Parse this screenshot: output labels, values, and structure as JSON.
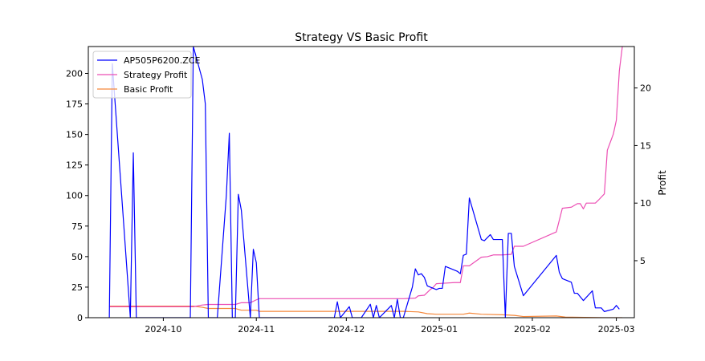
{
  "chart_data": {
    "type": "line",
    "title": "Strategy VS Basic Profit",
    "xlabel": "",
    "ylabel_left": "",
    "ylabel_right": "Profit",
    "x_ticks": [
      "2024-10",
      "2024-11",
      "2024-12",
      "2025-01",
      "2025-02",
      "2025-03"
    ],
    "y_left_ticks": [
      "0",
      "25",
      "50",
      "75",
      "100",
      "125",
      "150",
      "175",
      "200"
    ],
    "y_right_ticks": [
      "5",
      "10",
      "15",
      "20"
    ],
    "xlim": [
      "2024-09-06",
      "2025-03-07"
    ],
    "ylim_left": [
      0,
      222
    ],
    "ylim_right": [
      0.05,
      23.6
    ],
    "grid": false,
    "legend_position": "top-left",
    "series": [
      {
        "name": "AP505P6200.ZCE",
        "axis": "left",
        "color": "#0000ff",
        "points": [
          [
            "2024-09-13",
            0
          ],
          [
            "2024-09-14",
            208
          ],
          [
            "2024-09-20",
            0
          ],
          [
            "2024-09-21",
            135
          ],
          [
            "2024-09-22",
            0
          ],
          [
            "2024-10-10",
            0
          ],
          [
            "2024-10-11",
            222
          ],
          [
            "2024-10-14",
            195
          ],
          [
            "2024-10-15",
            175
          ],
          [
            "2024-10-16",
            0
          ],
          [
            "2024-10-19",
            0
          ],
          [
            "2024-10-22",
            100
          ],
          [
            "2024-10-23",
            151
          ],
          [
            "2024-10-24",
            0
          ],
          [
            "2024-10-25",
            0
          ],
          [
            "2024-10-26",
            101
          ],
          [
            "2024-10-27",
            88
          ],
          [
            "2024-10-30",
            0
          ],
          [
            "2024-10-31",
            56
          ],
          [
            "2024-11-01",
            45
          ],
          [
            "2024-11-02",
            0
          ],
          [
            "2024-11-27",
            0
          ],
          [
            "2024-11-28",
            13
          ],
          [
            "2024-11-29",
            0
          ],
          [
            "2024-12-02",
            9
          ],
          [
            "2024-12-03",
            0
          ],
          [
            "2024-12-06",
            0
          ],
          [
            "2024-12-09",
            11
          ],
          [
            "2024-12-10",
            0
          ],
          [
            "2024-12-11",
            10
          ],
          [
            "2024-12-12",
            0
          ],
          [
            "2024-12-16",
            10
          ],
          [
            "2024-12-17",
            0
          ],
          [
            "2024-12-18",
            15
          ],
          [
            "2024-12-19",
            0
          ],
          [
            "2024-12-20",
            0
          ],
          [
            "2024-12-23",
            25
          ],
          [
            "2024-12-24",
            40
          ],
          [
            "2024-12-25",
            35
          ],
          [
            "2024-12-26",
            36
          ],
          [
            "2024-12-27",
            33
          ],
          [
            "2024-12-28",
            26
          ],
          [
            "2024-12-31",
            23
          ],
          [
            "2025-01-01",
            24
          ],
          [
            "2025-01-02",
            24
          ],
          [
            "2025-01-03",
            42
          ],
          [
            "2025-01-07",
            38
          ],
          [
            "2025-01-08",
            36
          ],
          [
            "2025-01-09",
            51
          ],
          [
            "2025-01-10",
            52
          ],
          [
            "2025-01-11",
            98
          ],
          [
            "2025-01-15",
            64
          ],
          [
            "2025-01-16",
            63
          ],
          [
            "2025-01-18",
            68
          ],
          [
            "2025-01-19",
            64
          ],
          [
            "2025-01-22",
            64
          ],
          [
            "2025-01-23",
            0
          ],
          [
            "2025-01-24",
            69
          ],
          [
            "2025-01-25",
            69
          ],
          [
            "2025-01-26",
            42
          ],
          [
            "2025-01-29",
            18
          ],
          [
            "2025-02-09",
            51
          ],
          [
            "2025-02-10",
            37
          ],
          [
            "2025-02-11",
            32
          ],
          [
            "2025-02-13",
            30
          ],
          [
            "2025-02-14",
            29
          ],
          [
            "2025-02-15",
            20
          ],
          [
            "2025-02-16",
            20
          ],
          [
            "2025-02-18",
            14
          ],
          [
            "2025-02-21",
            22
          ],
          [
            "2025-02-22",
            8
          ],
          [
            "2025-02-24",
            8
          ],
          [
            "2025-02-25",
            5
          ],
          [
            "2025-02-28",
            7
          ],
          [
            "2025-03-01",
            10
          ],
          [
            "2025-03-02",
            7
          ]
        ]
      },
      {
        "name": "Strategy Profit",
        "axis": "right",
        "color": "#ec4fb4",
        "points": [
          [
            "2024-09-13",
            1.0
          ],
          [
            "2024-10-11",
            1.0
          ],
          [
            "2024-10-14",
            1.15
          ],
          [
            "2024-10-16",
            1.2
          ],
          [
            "2024-10-25",
            1.2
          ],
          [
            "2024-10-27",
            1.35
          ],
          [
            "2024-10-30",
            1.35
          ],
          [
            "2024-11-01",
            1.6
          ],
          [
            "2024-11-02",
            1.7
          ],
          [
            "2024-12-20",
            1.7
          ],
          [
            "2024-12-24",
            1.75
          ],
          [
            "2024-12-25",
            1.95
          ],
          [
            "2024-12-27",
            2.0
          ],
          [
            "2024-12-29",
            2.5
          ],
          [
            "2024-12-30",
            2.7
          ],
          [
            "2024-12-31",
            3.0
          ],
          [
            "2025-01-03",
            3.05
          ],
          [
            "2025-01-06",
            3.1
          ],
          [
            "2025-01-08",
            3.1
          ],
          [
            "2025-01-09",
            4.55
          ],
          [
            "2025-01-11",
            4.55
          ],
          [
            "2025-01-15",
            5.3
          ],
          [
            "2025-01-17",
            5.35
          ],
          [
            "2025-01-19",
            5.5
          ],
          [
            "2025-01-22",
            5.5
          ],
          [
            "2025-01-25",
            5.55
          ],
          [
            "2025-01-26",
            6.25
          ],
          [
            "2025-01-29",
            6.25
          ],
          [
            "2025-02-09",
            7.5
          ],
          [
            "2025-02-11",
            9.55
          ],
          [
            "2025-02-14",
            9.65
          ],
          [
            "2025-02-16",
            9.95
          ],
          [
            "2025-02-17",
            9.95
          ],
          [
            "2025-02-18",
            9.5
          ],
          [
            "2025-02-19",
            10.0
          ],
          [
            "2025-02-22",
            10.0
          ],
          [
            "2025-02-23",
            10.25
          ],
          [
            "2025-02-25",
            10.8
          ],
          [
            "2025-02-26",
            14.6
          ],
          [
            "2025-02-28",
            16.0
          ],
          [
            "2025-03-01",
            17.2
          ],
          [
            "2025-03-02",
            21.5
          ],
          [
            "2025-03-03",
            23.6
          ]
        ]
      },
      {
        "name": "Basic Profit",
        "axis": "right",
        "color": "#f5873a",
        "points": [
          [
            "2024-09-13",
            1.05
          ],
          [
            "2024-10-11",
            1.05
          ],
          [
            "2024-10-14",
            0.95
          ],
          [
            "2024-10-16",
            0.85
          ],
          [
            "2024-10-25",
            0.85
          ],
          [
            "2024-10-27",
            0.7
          ],
          [
            "2024-11-01",
            0.7
          ],
          [
            "2024-11-02",
            0.6
          ],
          [
            "2024-12-20",
            0.6
          ],
          [
            "2024-12-25",
            0.55
          ],
          [
            "2024-12-28",
            0.4
          ],
          [
            "2024-12-31",
            0.35
          ],
          [
            "2025-01-03",
            0.35
          ],
          [
            "2025-01-09",
            0.35
          ],
          [
            "2025-01-11",
            0.45
          ],
          [
            "2025-01-15",
            0.35
          ],
          [
            "2025-01-22",
            0.3
          ],
          [
            "2025-01-26",
            0.25
          ],
          [
            "2025-01-29",
            0.15
          ],
          [
            "2025-02-09",
            0.2
          ],
          [
            "2025-02-12",
            0.1
          ],
          [
            "2025-02-25",
            0.05
          ],
          [
            "2025-03-03",
            0.05
          ]
        ]
      }
    ]
  }
}
